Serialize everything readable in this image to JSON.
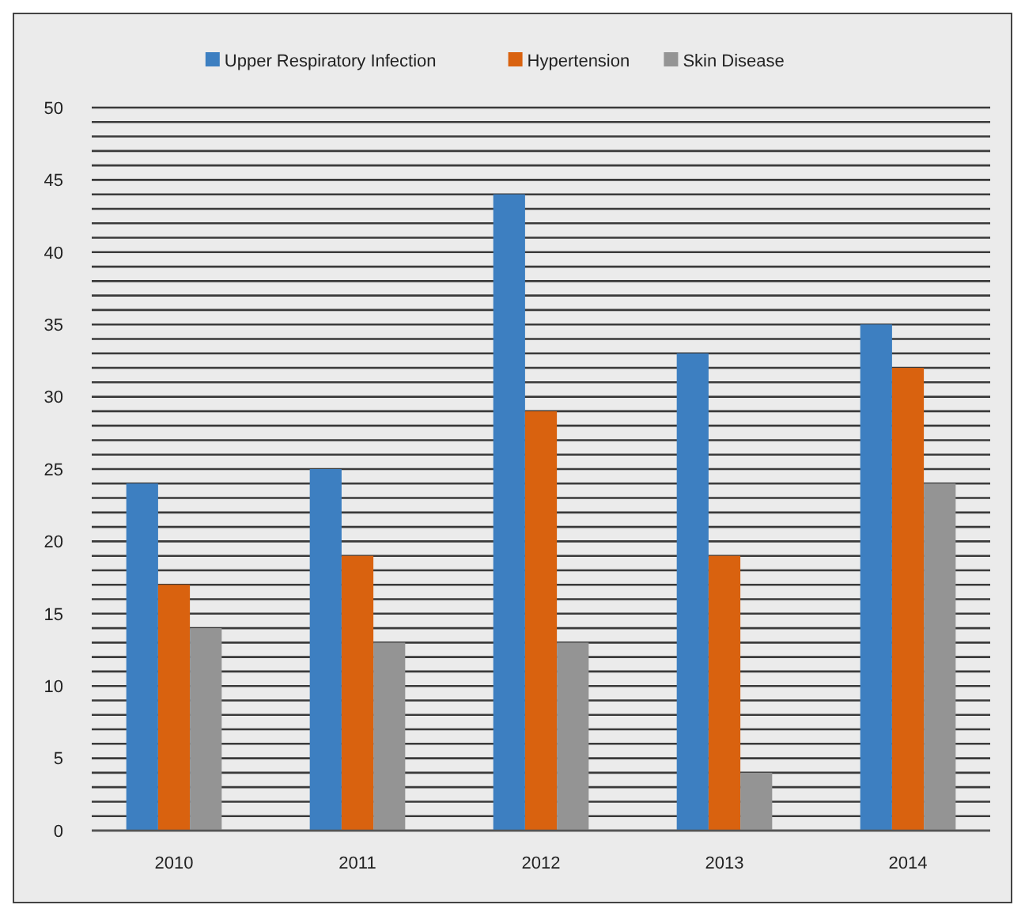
{
  "chart_data": {
    "type": "bar",
    "categories": [
      "2010",
      "2011",
      "2012",
      "2013",
      "2014"
    ],
    "series": [
      {
        "name": "Upper Respiratory Infection",
        "color": "#3d7fc1",
        "values": [
          24,
          25,
          44,
          33,
          35
        ]
      },
      {
        "name": "Hypertension",
        "color": "#d9620f",
        "values": [
          17,
          19,
          29,
          19,
          32
        ]
      },
      {
        "name": "Skin Disease",
        "color": "#949494",
        "values": [
          14,
          13,
          13,
          4,
          24
        ]
      }
    ],
    "ylim": [
      0,
      50
    ],
    "yticks": [
      0,
      {
        "value": 1,
        "label": null
      },
      {
        "value": 2,
        "label": null
      },
      {
        "value": 3,
        "label": null
      },
      {
        "value": 4,
        "label": null
      },
      5,
      {
        "value": 6,
        "label": null
      },
      {
        "value": 7,
        "label": null
      },
      {
        "value": 8,
        "label": null
      },
      {
        "value": 9,
        "label": null
      },
      10,
      {
        "value": 11,
        "label": null
      },
      {
        "value": 12,
        "label": null
      },
      {
        "value": 13,
        "label": null
      },
      {
        "value": 14,
        "label": null
      },
      15,
      {
        "value": 16,
        "label": null
      },
      {
        "value": 17,
        "label": null
      },
      {
        "value": 18,
        "label": null
      },
      {
        "value": 19,
        "label": null
      },
      20,
      {
        "value": 21,
        "label": null
      },
      {
        "value": 22,
        "label": null
      },
      {
        "value": 23,
        "label": null
      },
      {
        "value": 24,
        "label": null
      },
      25,
      {
        "value": 26,
        "label": null
      },
      {
        "value": 27,
        "label": null
      },
      {
        "value": 28,
        "label": null
      },
      {
        "value": 29,
        "label": null
      },
      30,
      {
        "value": 31,
        "label": null
      },
      {
        "value": 32,
        "label": null
      },
      {
        "value": 33,
        "label": null
      },
      {
        "value": 34,
        "label": null
      },
      35,
      {
        "value": 36,
        "label": null
      },
      {
        "value": 37,
        "label": null
      },
      {
        "value": 38,
        "label": null
      },
      {
        "value": 39,
        "label": null
      },
      40,
      {
        "value": 41,
        "label": null
      },
      {
        "value": 42,
        "label": null
      },
      {
        "value": 43,
        "label": null
      },
      {
        "value": 44,
        "label": null
      },
      45,
      {
        "value": 46,
        "label": null
      },
      {
        "value": 47,
        "label": null
      },
      {
        "value": 48,
        "label": null
      },
      {
        "value": 49,
        "label": null
      },
      50
    ],
    "grid": "y",
    "legend": "top"
  }
}
